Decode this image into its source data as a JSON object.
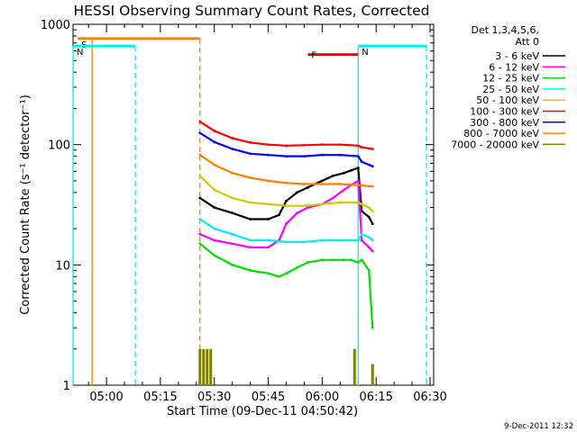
{
  "chart_data": {
    "type": "line",
    "title": "HESSI Observing Summary Count Rates, Corrected",
    "xlabel": "Start Time (09-Dec-11 04:50:42)",
    "ylabel": "Corrected Count Rate (s⁻¹ detector⁻¹)",
    "y_scale": "log",
    "ylim": [
      1,
      1000
    ],
    "xlim": [
      "04:50:42",
      "06:31:00"
    ],
    "x_ticks": [
      "05:00",
      "05:15",
      "05:30",
      "05:45",
      "06:00",
      "06:15",
      "06:30"
    ],
    "y_ticks": [
      {
        "value": 1,
        "label": "1"
      },
      {
        "value": 10,
        "label": "10"
      },
      {
        "value": 100,
        "label": "100"
      },
      {
        "value": 1000,
        "label": "1000"
      }
    ],
    "grid": false,
    "legend_position": "right",
    "legend_header": [
      "Det 1,3,4,5,6,",
      "Att 0"
    ],
    "series": [
      {
        "name": "3 - 6 keV",
        "color": "#000000",
        "points": [
          [
            "05:26",
            36
          ],
          [
            "05:30",
            30
          ],
          [
            "05:35",
            27
          ],
          [
            "05:40",
            24
          ],
          [
            "05:45",
            24
          ],
          [
            "05:48",
            26
          ],
          [
            "05:50",
            34
          ],
          [
            "05:53",
            40
          ],
          [
            "05:56",
            44
          ],
          [
            "06:00",
            50
          ],
          [
            "06:03",
            55
          ],
          [
            "06:06",
            58
          ],
          [
            "06:08",
            61
          ],
          [
            "06:10",
            64
          ],
          [
            "06:11",
            28
          ],
          [
            "06:13",
            25
          ],
          [
            "06:14",
            22
          ]
        ]
      },
      {
        "name": "6 - 12 keV",
        "color": "#ff00ff",
        "points": [
          [
            "05:26",
            18
          ],
          [
            "05:30",
            16
          ],
          [
            "05:35",
            15
          ],
          [
            "05:40",
            14
          ],
          [
            "05:45",
            14
          ],
          [
            "05:48",
            16
          ],
          [
            "05:50",
            22
          ],
          [
            "05:53",
            27
          ],
          [
            "05:56",
            30
          ],
          [
            "06:00",
            32
          ],
          [
            "06:03",
            36
          ],
          [
            "06:06",
            42
          ],
          [
            "06:08",
            46
          ],
          [
            "06:10",
            50
          ],
          [
            "06:11",
            16
          ],
          [
            "06:13",
            14
          ],
          [
            "06:14",
            13
          ]
        ]
      },
      {
        "name": "12 - 25 keV",
        "color": "#00dd00",
        "points": [
          [
            "05:26",
            15
          ],
          [
            "05:30",
            12
          ],
          [
            "05:35",
            10
          ],
          [
            "05:40",
            9
          ],
          [
            "05:45",
            8.5
          ],
          [
            "05:48",
            8
          ],
          [
            "05:50",
            8.5
          ],
          [
            "05:53",
            9.5
          ],
          [
            "05:56",
            10.5
          ],
          [
            "06:00",
            11
          ],
          [
            "06:03",
            11
          ],
          [
            "06:06",
            11
          ],
          [
            "06:08",
            11
          ],
          [
            "06:10",
            10.5
          ],
          [
            "06:11",
            11
          ],
          [
            "06:13",
            9
          ],
          [
            "06:14",
            3
          ]
        ]
      },
      {
        "name": "25 - 50 keV",
        "color": "#00eeee",
        "points": [
          [
            "05:26",
            24
          ],
          [
            "05:30",
            20
          ],
          [
            "05:35",
            18
          ],
          [
            "05:40",
            16
          ],
          [
            "05:45",
            16
          ],
          [
            "05:50",
            15.5
          ],
          [
            "05:55",
            15.5
          ],
          [
            "06:00",
            16
          ],
          [
            "06:05",
            16
          ],
          [
            "06:10",
            16
          ],
          [
            "06:11",
            18
          ],
          [
            "06:13",
            17
          ],
          [
            "06:14",
            16
          ]
        ]
      },
      {
        "name": "50 - 100 keV",
        "color": "#cccc00",
        "points": [
          [
            "05:26",
            55
          ],
          [
            "05:30",
            42
          ],
          [
            "05:35",
            36
          ],
          [
            "05:40",
            33
          ],
          [
            "05:45",
            32
          ],
          [
            "05:50",
            31
          ],
          [
            "05:55",
            31
          ],
          [
            "06:00",
            32
          ],
          [
            "06:05",
            33
          ],
          [
            "06:10",
            33
          ],
          [
            "06:11",
            32
          ],
          [
            "06:13",
            30
          ],
          [
            "06:14",
            28
          ]
        ]
      },
      {
        "name": "100 - 300 keV",
        "color": "#ff0000",
        "points": [
          [
            "05:26",
            155
          ],
          [
            "05:30",
            130
          ],
          [
            "05:35",
            113
          ],
          [
            "05:40",
            104
          ],
          [
            "05:45",
            100
          ],
          [
            "05:50",
            98
          ],
          [
            "05:55",
            99
          ],
          [
            "06:00",
            100
          ],
          [
            "06:05",
            100
          ],
          [
            "06:10",
            98
          ],
          [
            "06:11",
            95
          ],
          [
            "06:13",
            93
          ],
          [
            "06:14",
            92
          ]
        ]
      },
      {
        "name": "300 - 800 keV",
        "color": "#0000ff",
        "points": [
          [
            "05:26",
            125
          ],
          [
            "05:30",
            105
          ],
          [
            "05:35",
            92
          ],
          [
            "05:40",
            84
          ],
          [
            "05:45",
            82
          ],
          [
            "05:50",
            80
          ],
          [
            "05:55",
            80
          ],
          [
            "06:00",
            82
          ],
          [
            "06:05",
            82
          ],
          [
            "06:10",
            80
          ],
          [
            "06:11",
            72
          ],
          [
            "06:13",
            68
          ],
          [
            "06:14",
            66
          ]
        ]
      },
      {
        "name": "800 - 7000 keV",
        "color": "#ff8000",
        "points": [
          [
            "05:26",
            82
          ],
          [
            "05:30",
            68
          ],
          [
            "05:35",
            58
          ],
          [
            "05:40",
            53
          ],
          [
            "05:45",
            50
          ],
          [
            "05:50",
            48
          ],
          [
            "05:55",
            47
          ],
          [
            "06:00",
            47
          ],
          [
            "06:05",
            47
          ],
          [
            "06:10",
            46
          ],
          [
            "06:11",
            46
          ],
          [
            "06:13",
            45
          ],
          [
            "06:14",
            45
          ]
        ]
      },
      {
        "name": "7000 - 20000 keV",
        "color": "#808000",
        "points": [
          [
            "05:26",
            2
          ],
          [
            "05:27",
            2
          ],
          [
            "05:28",
            2
          ],
          [
            "05:29",
            2
          ],
          [
            "06:09",
            2
          ],
          [
            "06:14",
            1.5
          ]
        ]
      }
    ],
    "annotations": [
      {
        "label": "S",
        "color": "#ff8000",
        "start": "04:52",
        "end": "05:26",
        "value": 760,
        "boundaries": [
          "04:56",
          "05:26"
        ]
      },
      {
        "label": "N",
        "color": "#00eeee",
        "start": "04:50:42",
        "end": "05:08",
        "value": 660,
        "boundaries": [
          "04:50:42",
          "05:08"
        ]
      },
      {
        "label": "N",
        "color": "#00eeee",
        "start": "06:10",
        "end": "06:29",
        "value": 660,
        "boundaries": [
          "06:10",
          "06:29"
        ]
      },
      {
        "label": "F",
        "color": "#ff0000",
        "start": "05:56",
        "end": "06:10",
        "value": 560,
        "boundaries": []
      }
    ],
    "footer_date": "9-Dec-2011 12:32"
  }
}
